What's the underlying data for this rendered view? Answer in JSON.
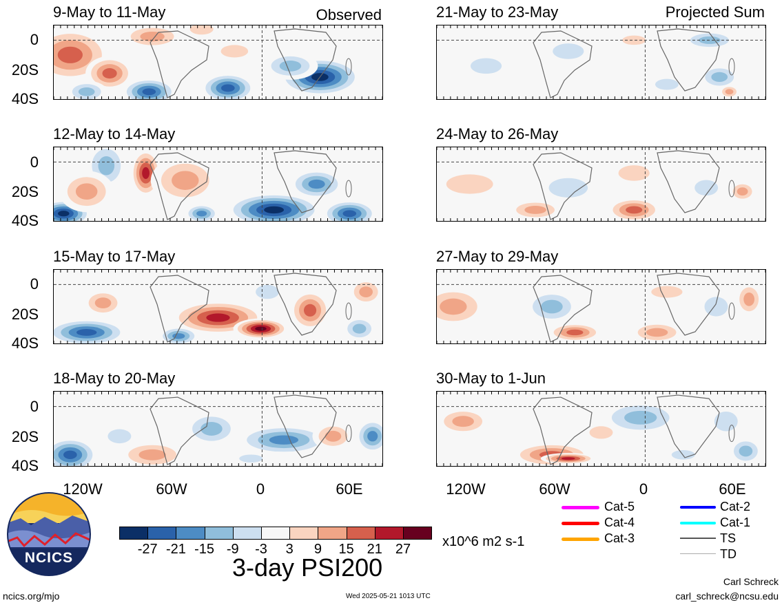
{
  "panels": [
    {
      "title": "9-May to 11-May",
      "tag": "Observed"
    },
    {
      "title": "21-May to 23-May",
      "tag": "Projected Sum"
    },
    {
      "title": "12-May to 14-May",
      "tag": ""
    },
    {
      "title": "24-May to 26-May",
      "tag": ""
    },
    {
      "title": "15-May to 17-May",
      "tag": ""
    },
    {
      "title": "27-May to 29-May",
      "tag": ""
    },
    {
      "title": "18-May to 20-May",
      "tag": ""
    },
    {
      "title": "30-May to 1-Jun",
      "tag": ""
    }
  ],
  "axes": {
    "y_labels": [
      "0",
      "20S",
      "40S"
    ],
    "x_labels": [
      "120W",
      "60W",
      "0",
      "60E"
    ]
  },
  "colorbar": {
    "colors": [
      "#0b2f66",
      "#2a62aa",
      "#4d8cc4",
      "#90bedb",
      "#cddff0",
      "#f7f7f7",
      "#fad4c0",
      "#f0a587",
      "#d6604d",
      "#b2182b",
      "#67001f"
    ],
    "labels": [
      "-27",
      "-21",
      "-15",
      "-9",
      "-3",
      "3",
      "9",
      "15",
      "21",
      "27"
    ],
    "units": "x10^6 m2 s-1",
    "title": "3-day PSI200"
  },
  "legend": [
    {
      "label": "Cat-5",
      "color": "#ff00ff"
    },
    {
      "label": "Cat-4",
      "color": "#ff0000"
    },
    {
      "label": "Cat-3",
      "color": "#ffa500"
    },
    {
      "label": "Cat-2",
      "color": "#0000ff"
    },
    {
      "label": "Cat-1",
      "color": "#00ffff"
    },
    {
      "label": "TS",
      "color": "#555555"
    },
    {
      "label": "TD",
      "color": "#aaaaaa"
    }
  ],
  "logo": {
    "text": "NCICS"
  },
  "footer": {
    "site": "ncics.org/mjo",
    "timestamp": "Wed 2025-05-21 1013 UTC",
    "author": "Carl Schreck",
    "email": "carl_schreck@ncsu.edu"
  }
}
